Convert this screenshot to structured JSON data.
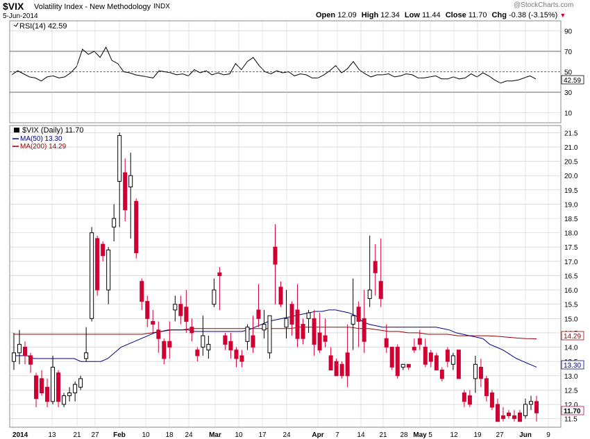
{
  "header": {
    "symbol": "$VIX",
    "name": "Volatility Index - New Methodology",
    "exchange": "INDX",
    "date": "5-Jun-2014",
    "watermark": "@StockCharts.com",
    "ohlc": {
      "open_label": "Open",
      "open": "12.09",
      "high_label": "High",
      "high": "12.34",
      "low_label": "Low",
      "low": "11.44",
      "close_label": "Close",
      "close": "11.70",
      "chg_label": "Chg",
      "chg": "-0.38 (-3.15%)"
    }
  },
  "rsi_panel": {
    "legend": "RSI(14) 42.59",
    "current": "42.59",
    "ticks": [
      "90",
      "70",
      "50",
      "30",
      "10"
    ]
  },
  "price_panel": {
    "legend_title": "$VIX (Daily) 11.70",
    "legend_ma50": "MA(50) 13.30",
    "legend_ma200": "MA(200) 14.29",
    "badge_ma200": "14.29",
    "badge_ma50": "13.30",
    "badge_close": "11.70",
    "ticks": [
      "21.5",
      "21.0",
      "20.5",
      "20.0",
      "19.5",
      "19.0",
      "18.5",
      "18.0",
      "17.5",
      "17.0",
      "16.5",
      "16.0",
      "15.5",
      "15.0",
      "14.5",
      "14.0",
      "13.5",
      "13.0",
      "12.5",
      "12.0",
      "11.5"
    ]
  },
  "x_axis": [
    "2014",
    "13",
    "21",
    "27",
    "Feb",
    "10",
    "18",
    "24",
    "Mar",
    "10",
    "17",
    "24",
    "Apr",
    "7",
    "14",
    "21",
    "28",
    "May",
    "5",
    "12",
    "19",
    "27",
    "Jun",
    "9"
  ],
  "colors": {
    "up": "#000000",
    "down": "#cc0033",
    "ma50": "#000080",
    "ma200": "#990000",
    "grid": "#c8c8c8"
  },
  "chart_data": [
    {
      "type": "line",
      "title": "RSI(14) 42.59",
      "ylim": [
        0,
        100
      ],
      "reference_lines": [
        70,
        50,
        30
      ],
      "series": [
        {
          "name": "RSI(14)",
          "values": [
            47,
            51,
            48,
            45,
            44,
            41,
            45,
            46,
            44,
            45,
            49,
            55,
            72,
            67,
            70,
            64,
            74,
            61,
            58,
            50,
            49,
            47,
            46,
            45,
            44,
            51,
            50,
            49,
            47,
            48,
            46,
            52,
            49,
            51,
            47,
            49,
            47,
            48,
            58,
            52,
            60,
            64,
            56,
            50,
            48,
            51,
            49,
            50,
            46,
            48,
            47,
            44,
            44,
            47,
            51,
            56,
            49,
            53,
            60,
            52,
            48,
            45,
            47,
            47,
            48,
            45,
            46,
            48,
            47,
            44,
            44,
            45,
            46,
            43,
            43,
            45,
            43,
            44,
            48,
            45,
            49,
            46,
            42,
            39,
            41,
            41,
            42,
            44,
            46,
            43
          ]
        }
      ]
    },
    {
      "type": "candlestick",
      "title": "$VIX (Daily) 11.70",
      "ylim": [
        11.4,
        21.7
      ],
      "series": [
        {
          "name": "$VIX (Daily)",
          "ohlc": [
            [
              13.5,
              14.5,
              13.2,
              13.8
            ],
            [
              13.8,
              14.6,
              13.4,
              14.1
            ],
            [
              14.0,
              14.2,
              13.4,
              13.7
            ],
            [
              13.7,
              13.8,
              13.1,
              13.4
            ],
            [
              13.0,
              13.1,
              11.9,
              12.2
            ],
            [
              12.9,
              13.2,
              12.3,
              12.4
            ],
            [
              12.6,
              12.9,
              11.9,
              12.1
            ],
            [
              12.1,
              13.7,
              12.0,
              13.3
            ],
            [
              13.1,
              13.2,
              11.9,
              12.1
            ],
            [
              12.0,
              12.4,
              11.9,
              12.3
            ],
            [
              12.3,
              12.6,
              12.1,
              12.4
            ],
            [
              12.4,
              12.8,
              12.1,
              12.7
            ],
            [
              12.6,
              13.0,
              12.5,
              12.9
            ],
            [
              13.6,
              14.7,
              13.5,
              13.8
            ],
            [
              15.0,
              18.2,
              14.9,
              18.0
            ],
            [
              17.8,
              17.9,
              15.8,
              16.0
            ],
            [
              17.6,
              17.7,
              17.0,
              17.2
            ],
            [
              16.0,
              17.5,
              15.5,
              17.4
            ],
            [
              18.2,
              19.0,
              17.7,
              18.5
            ],
            [
              19.8,
              21.5,
              18.2,
              21.4
            ],
            [
              20.1,
              20.6,
              18.4,
              18.8
            ],
            [
              19.6,
              20.8,
              17.8,
              20.0
            ],
            [
              19.1,
              19.2,
              17.1,
              17.3
            ],
            [
              16.3,
              16.4,
              15.3,
              15.6
            ],
            [
              15.6,
              15.8,
              14.7,
              15.0
            ],
            [
              14.9,
              15.3,
              14.5,
              14.8
            ],
            [
              14.6,
              14.9,
              13.8,
              14.3
            ],
            [
              14.2,
              14.3,
              13.4,
              13.6
            ],
            [
              14.2,
              14.9,
              13.6,
              14.0
            ],
            [
              15.3,
              15.8,
              14.9,
              15.5
            ],
            [
              15.5,
              15.8,
              14.8,
              15.1
            ],
            [
              15.4,
              16.0,
              14.5,
              14.9
            ],
            [
              14.7,
              15.0,
              14.2,
              14.5
            ],
            [
              13.9,
              14.0,
              13.5,
              13.7
            ],
            [
              14.0,
              15.1,
              13.7,
              14.4
            ],
            [
              13.9,
              14.4,
              13.6,
              14.1
            ],
            [
              15.5,
              16.4,
              15.4,
              16.0
            ],
            [
              16.6,
              16.8,
              15.3,
              16.5
            ],
            [
              14.4,
              14.5,
              13.9,
              14.1
            ],
            [
              14.2,
              14.5,
              13.6,
              13.9
            ],
            [
              13.9,
              14.0,
              13.3,
              13.6
            ],
            [
              13.7,
              13.9,
              13.3,
              13.5
            ],
            [
              14.2,
              14.8,
              13.9,
              14.7
            ],
            [
              14.4,
              15.1,
              13.8,
              14.0
            ],
            [
              15.3,
              16.2,
              14.7,
              15.0
            ],
            [
              14.6,
              15.3,
              14.3,
              14.8
            ],
            [
              13.8,
              15.0,
              13.6,
              15.1
            ],
            [
              17.5,
              18.3,
              15.5,
              16.9
            ],
            [
              16.1,
              16.3,
              15.4,
              15.5
            ],
            [
              14.7,
              16.0,
              14.3,
              15.0
            ],
            [
              15.5,
              15.6,
              14.4,
              14.8
            ],
            [
              15.3,
              16.2,
              14.0,
              14.3
            ],
            [
              14.8,
              15.0,
              14.1,
              14.3
            ],
            [
              15.0,
              15.3,
              14.5,
              15.2
            ],
            [
              15.0,
              15.3,
              13.7,
              14.1
            ],
            [
              14.5,
              15.2,
              13.8,
              13.9
            ],
            [
              14.4,
              15.0,
              14.0,
              14.2
            ],
            [
              13.7,
              14.0,
              13.3,
              13.2
            ],
            [
              13.5,
              13.6,
              13.0,
              13.0
            ],
            [
              13.4,
              13.5,
              12.9,
              13.0
            ],
            [
              13.8,
              14.8,
              12.6,
              13.0
            ],
            [
              14.8,
              16.4,
              13.9,
              15.1
            ],
            [
              15.4,
              15.6,
              14.0,
              14.9
            ],
            [
              15.0,
              16.0,
              13.8,
              14.2
            ],
            [
              15.7,
              17.9,
              15.4,
              16.0
            ],
            [
              17.0,
              17.6,
              15.8,
              16.6
            ],
            [
              16.3,
              17.8,
              15.4,
              15.7
            ],
            [
              14.3,
              14.8,
              13.8,
              14.0
            ],
            [
              14.0,
              14.0,
              13.2,
              13.3
            ],
            [
              14.0,
              14.1,
              12.9,
              13.0
            ],
            [
              13.3,
              13.4,
              13.2,
              13.4
            ],
            [
              13.4,
              13.4,
              13.2,
              13.3
            ],
            [
              14.0,
              14.3,
              13.8,
              13.9
            ],
            [
              14.3,
              14.6,
              13.9,
              14.1
            ],
            [
              14.0,
              14.3,
              13.3,
              13.4
            ],
            [
              13.8,
              13.9,
              13.3,
              13.5
            ],
            [
              13.7,
              13.8,
              13.2,
              13.2
            ],
            [
              13.2,
              13.3,
              12.8,
              12.9
            ],
            [
              13.9,
              14.0,
              13.3,
              13.5
            ],
            [
              13.4,
              13.8,
              13.2,
              13.7
            ],
            [
              13.9,
              13.9,
              13.0,
              12.9
            ],
            [
              12.4,
              12.5,
              11.9,
              12.1
            ],
            [
              12.3,
              12.5,
              11.9,
              12.0
            ],
            [
              12.9,
              13.7,
              12.4,
              13.4
            ],
            [
              13.3,
              13.6,
              12.6,
              12.9
            ],
            [
              12.9,
              13.0,
              12.1,
              12.3
            ],
            [
              12.4,
              12.5,
              11.8,
              11.9
            ],
            [
              12.0,
              12.2,
              11.4,
              11.4
            ],
            [
              11.6,
              11.9,
              11.4,
              11.5
            ],
            [
              11.7,
              11.8,
              11.5,
              11.6
            ],
            [
              11.6,
              11.8,
              11.4,
              11.5
            ],
            [
              11.7,
              11.8,
              11.4,
              11.4
            ],
            [
              11.6,
              12.2,
              11.5,
              12.0
            ],
            [
              12.0,
              12.3,
              11.8,
              12.1
            ],
            [
              12.1,
              12.3,
              11.4,
              11.7
            ]
          ]
        },
        {
          "name": "MA(50)",
          "values": [
            13.7,
            13.7,
            13.7,
            13.6,
            13.6,
            13.6,
            13.6,
            13.6,
            13.6,
            13.6,
            13.5,
            13.5,
            13.5,
            13.5,
            13.6,
            13.8,
            14.0,
            14.1,
            14.2,
            14.3,
            14.4,
            14.5,
            14.55,
            14.6,
            14.6,
            14.6,
            14.6,
            14.55,
            14.55,
            14.55,
            14.55,
            14.55,
            14.55,
            14.55,
            14.55,
            14.6,
            14.7,
            14.8,
            14.9,
            14.95,
            15.0,
            15.05,
            15.1,
            15.15,
            15.2,
            15.25,
            15.25,
            15.3,
            15.3,
            15.25,
            15.2,
            15.1,
            14.9,
            14.8,
            14.75,
            14.7,
            14.7,
            14.7,
            14.7,
            14.7,
            14.7,
            14.7,
            14.7,
            14.7,
            14.65,
            14.6,
            14.5,
            14.45,
            14.4,
            14.35,
            14.3,
            14.1,
            14.0,
            13.9,
            13.75,
            13.6,
            13.5,
            13.4,
            13.3
          ]
        },
        {
          "name": "MA(200)",
          "values": [
            14.45,
            14.45,
            14.45,
            14.45,
            14.45,
            14.45,
            14.45,
            14.45,
            14.45,
            14.45,
            14.45,
            14.45,
            14.45,
            14.45,
            14.5,
            14.55,
            14.6,
            14.6,
            14.65,
            14.65,
            14.65,
            14.65,
            14.65,
            14.65,
            14.65,
            14.65,
            14.65,
            14.65,
            14.65,
            14.7,
            14.7,
            14.7,
            14.7,
            14.7,
            14.7,
            14.65,
            14.65,
            14.6,
            14.55,
            14.55,
            14.5,
            14.5,
            14.45,
            14.45,
            14.45,
            14.4,
            14.4,
            14.4,
            14.4,
            14.38,
            14.35,
            14.32,
            14.3,
            14.29
          ]
        }
      ]
    }
  ]
}
